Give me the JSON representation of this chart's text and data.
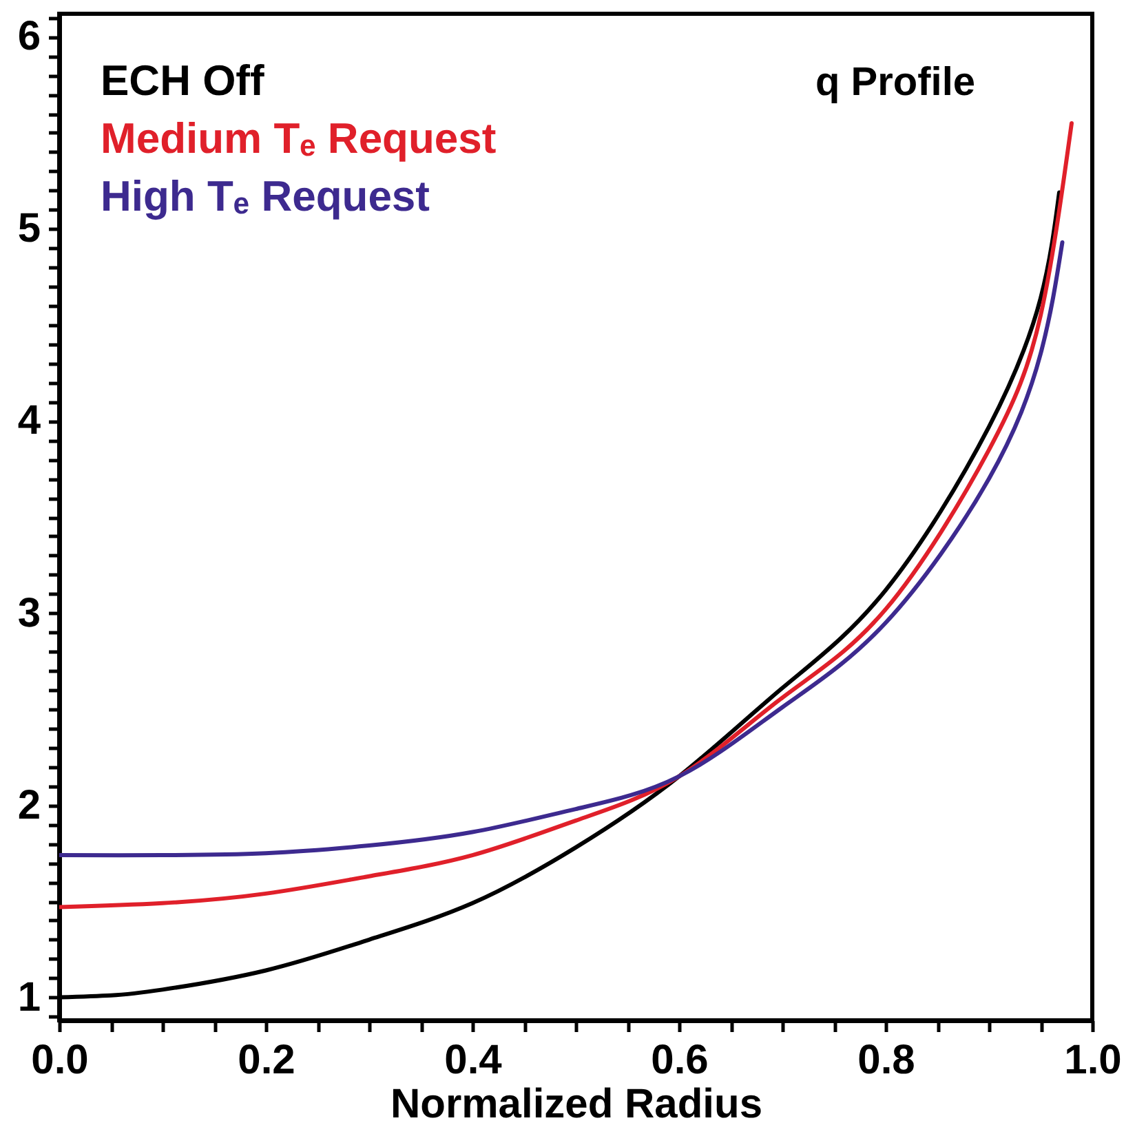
{
  "chart_data": {
    "type": "line",
    "title": "q Profile",
    "xlabel": "Normalized Radius",
    "xlim": [
      0,
      1.0
    ],
    "ylim": [
      0.88,
      6.12
    ],
    "xticks": [
      {
        "value": 0,
        "label": "0.0"
      },
      {
        "value": 0.05,
        "label": null
      },
      {
        "value": 0.1,
        "label": null
      },
      {
        "value": 0.15,
        "label": null
      },
      {
        "value": 0.2,
        "label": "0.2"
      },
      {
        "value": 0.25,
        "label": null
      },
      {
        "value": 0.3,
        "label": null
      },
      {
        "value": 0.35,
        "label": null
      },
      {
        "value": 0.4,
        "label": "0.4"
      },
      {
        "value": 0.45,
        "label": null
      },
      {
        "value": 0.5,
        "label": null
      },
      {
        "value": 0.55,
        "label": null
      },
      {
        "value": 0.6,
        "label": "0.6"
      },
      {
        "value": 0.65,
        "label": null
      },
      {
        "value": 0.7,
        "label": null
      },
      {
        "value": 0.75,
        "label": null
      },
      {
        "value": 0.8,
        "label": "0.8"
      },
      {
        "value": 0.85,
        "label": null
      },
      {
        "value": 0.9,
        "label": null
      },
      {
        "value": 0.95,
        "label": null
      },
      {
        "value": 1.0,
        "label": "1.0"
      }
    ],
    "yticks": [
      {
        "value": 0.9,
        "label": null
      },
      1,
      {
        "value": 1.1,
        "label": null
      },
      {
        "value": 1.2,
        "label": null
      },
      {
        "value": 1.3,
        "label": null
      },
      {
        "value": 1.4,
        "label": null
      },
      {
        "value": 1.5,
        "label": null
      },
      {
        "value": 1.6,
        "label": null
      },
      {
        "value": 1.7,
        "label": null
      },
      {
        "value": 1.8,
        "label": null
      },
      {
        "value": 1.9,
        "label": null
      },
      2,
      {
        "value": 2.1,
        "label": null
      },
      {
        "value": 2.2,
        "label": null
      },
      {
        "value": 2.3,
        "label": null
      },
      {
        "value": 2.4,
        "label": null
      },
      {
        "value": 2.5,
        "label": null
      },
      {
        "value": 2.6,
        "label": null
      },
      {
        "value": 2.7,
        "label": null
      },
      {
        "value": 2.8,
        "label": null
      },
      {
        "value": 2.9,
        "label": null
      },
      3,
      {
        "value": 3.1,
        "label": null
      },
      {
        "value": 3.2,
        "label": null
      },
      {
        "value": 3.3,
        "label": null
      },
      {
        "value": 3.4,
        "label": null
      },
      {
        "value": 3.5,
        "label": null
      },
      {
        "value": 3.6,
        "label": null
      },
      {
        "value": 3.7,
        "label": null
      },
      {
        "value": 3.8,
        "label": null
      },
      {
        "value": 3.9,
        "label": null
      },
      4,
      {
        "value": 4.1,
        "label": null
      },
      {
        "value": 4.2,
        "label": null
      },
      {
        "value": 4.3,
        "label": null
      },
      {
        "value": 4.4,
        "label": null
      },
      {
        "value": 4.5,
        "label": null
      },
      {
        "value": 4.6,
        "label": null
      },
      {
        "value": 4.7,
        "label": null
      },
      {
        "value": 4.8,
        "label": null
      },
      {
        "value": 4.9,
        "label": null
      },
      5,
      {
        "value": 5.1,
        "label": null
      },
      {
        "value": 5.2,
        "label": null
      },
      {
        "value": 5.3,
        "label": null
      },
      {
        "value": 5.4,
        "label": null
      },
      {
        "value": 5.5,
        "label": null
      },
      {
        "value": 5.6,
        "label": null
      },
      {
        "value": 5.7,
        "label": null
      },
      {
        "value": 5.8,
        "label": null
      },
      {
        "value": 5.9,
        "label": null
      },
      6,
      {
        "value": 6.1,
        "label": null
      }
    ],
    "grid": false,
    "marker": "none",
    "line_style": "solid",
    "series": [
      {
        "name": "ECH Off",
        "color": "#000000",
        "x": [
          0,
          0.05,
          0.1,
          0.2,
          0.3,
          0.4,
          0.5,
          0.6,
          0.7,
          0.8,
          0.9,
          0.95,
          0.968
        ],
        "values": [
          1.0,
          1.01,
          1.04,
          1.14,
          1.3,
          1.49,
          1.78,
          2.15,
          2.61,
          3.12,
          3.97,
          4.64,
          5.19
        ]
      },
      {
        "name": "Medium Tₑ Request",
        "color": "#e0202a",
        "x": [
          0,
          0.1,
          0.2,
          0.3,
          0.4,
          0.5,
          0.6,
          0.7,
          0.8,
          0.9,
          0.95,
          0.98
        ],
        "values": [
          1.47,
          1.49,
          1.54,
          1.63,
          1.74,
          1.92,
          2.15,
          2.56,
          3.02,
          3.85,
          4.55,
          5.55
        ]
      },
      {
        "name": "High Tₑ Request",
        "color": "#3d2a8f",
        "x": [
          0,
          0.1,
          0.2,
          0.3,
          0.4,
          0.5,
          0.6,
          0.7,
          0.8,
          0.9,
          0.95,
          0.971
        ],
        "values": [
          1.74,
          1.74,
          1.75,
          1.79,
          1.86,
          1.98,
          2.15,
          2.51,
          2.95,
          3.7,
          4.35,
          4.93
        ]
      }
    ]
  }
}
